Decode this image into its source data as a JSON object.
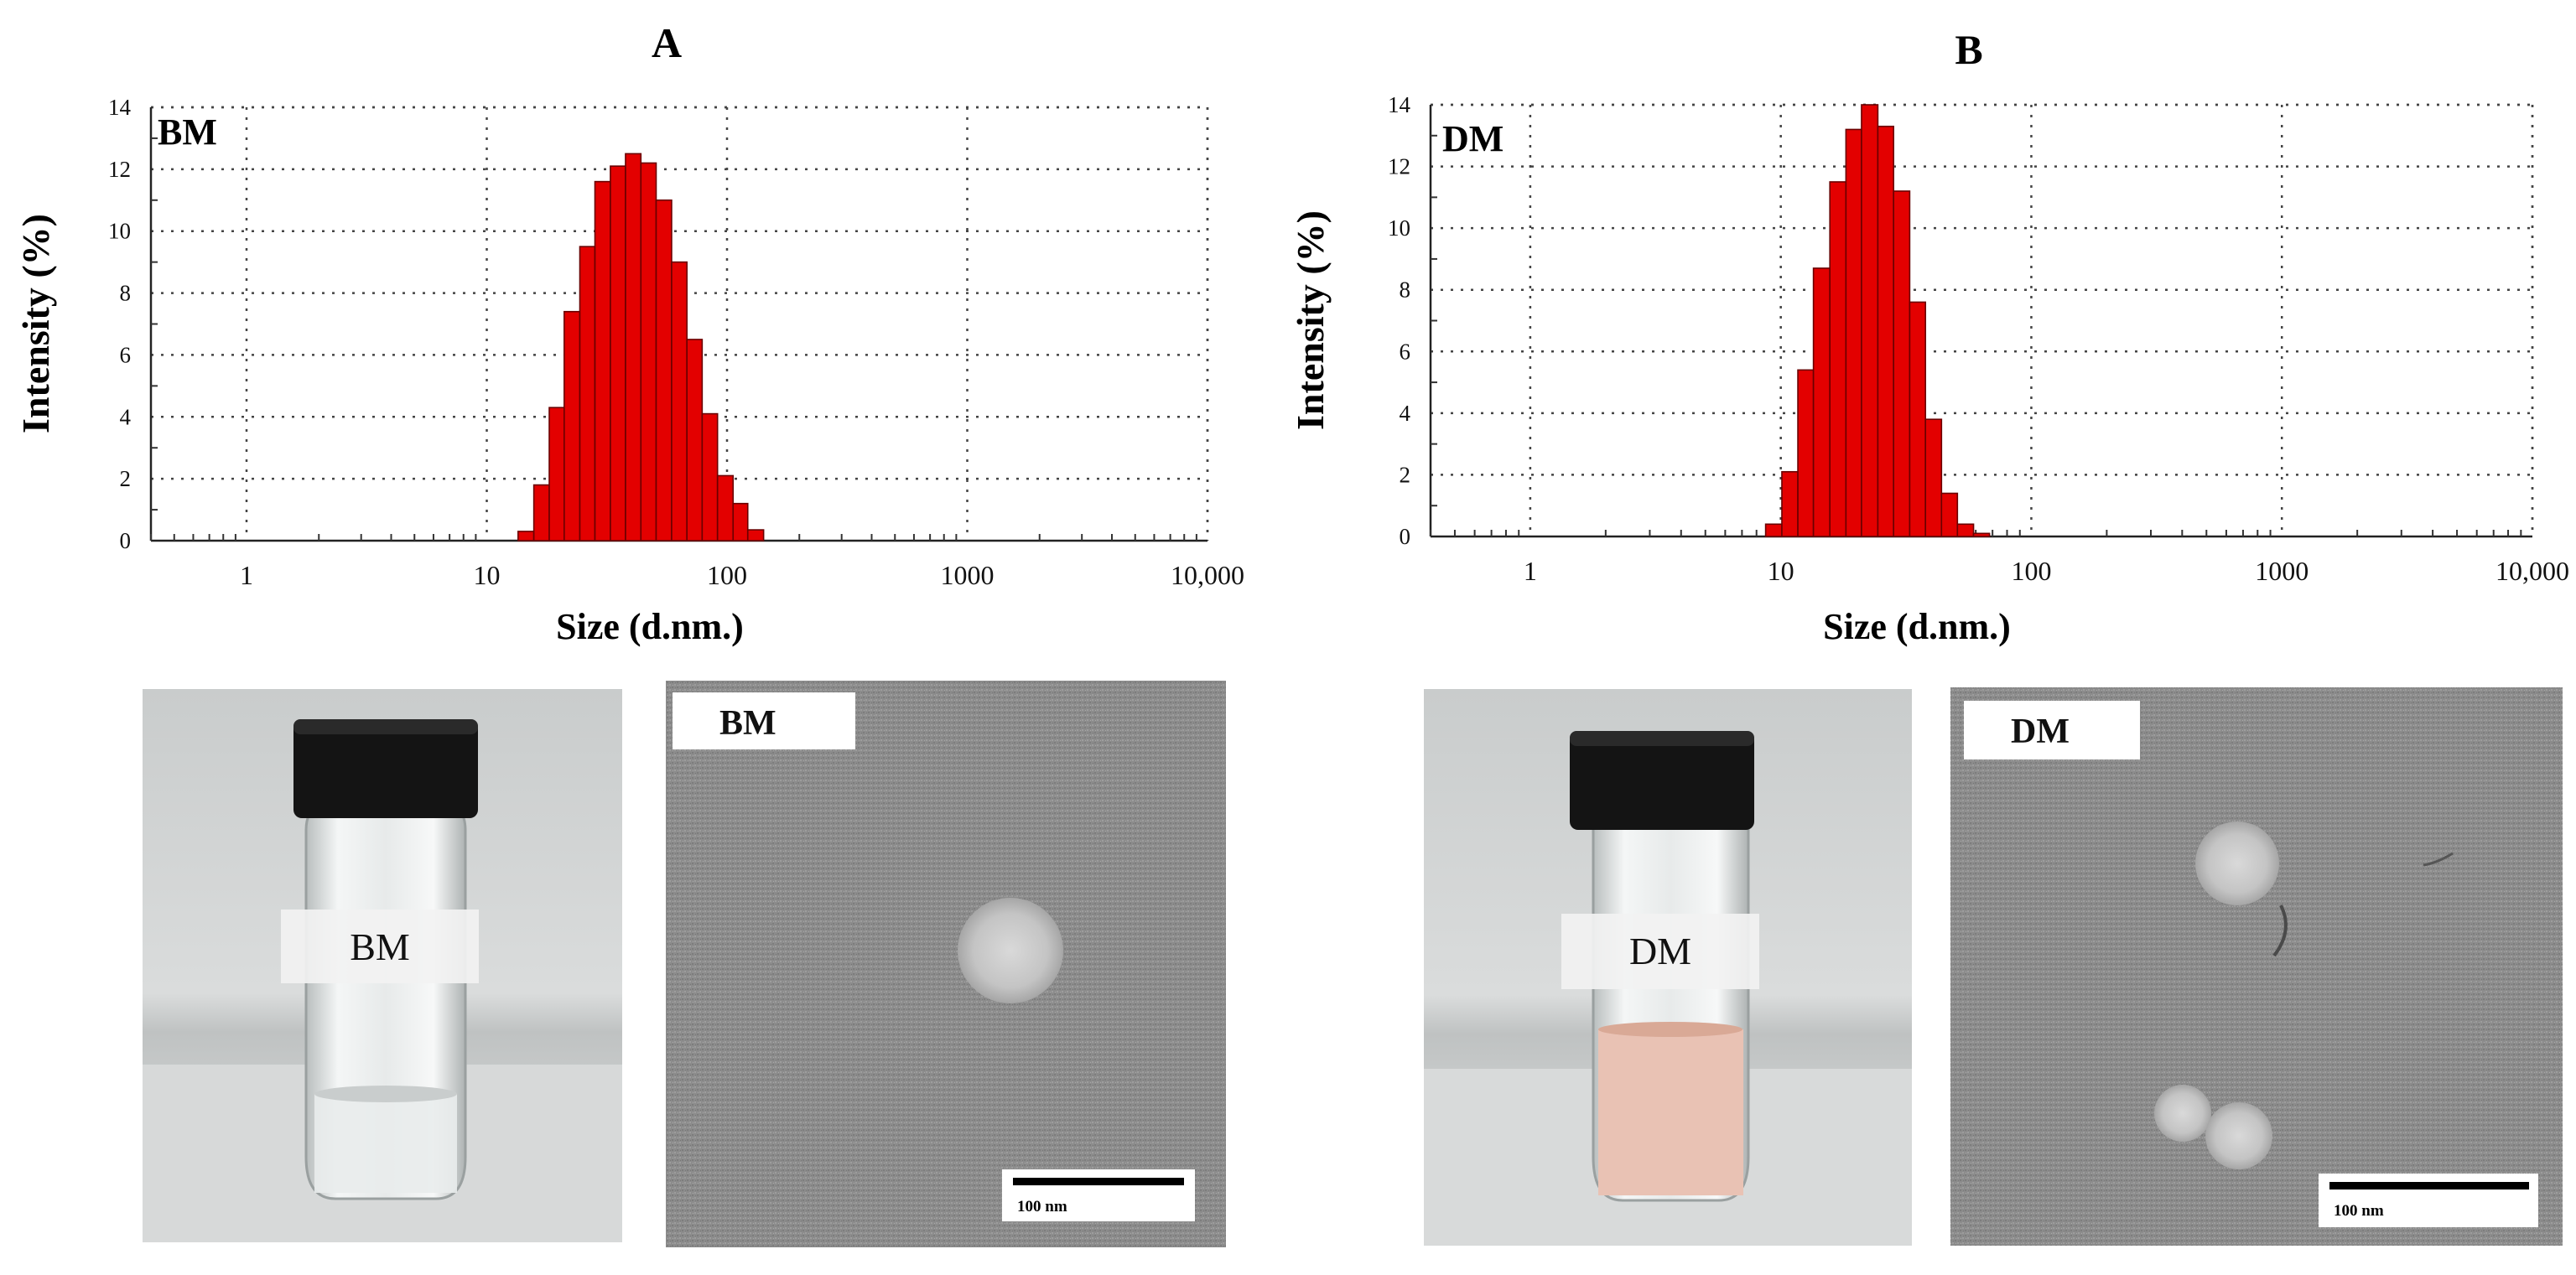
{
  "figure": {
    "panels": [
      {
        "letter": "A",
        "inset_label": "BM",
        "vial_label": "BM",
        "tem_label": "BM",
        "scale_bar": "100 nm"
      },
      {
        "letter": "B",
        "inset_label": "DM",
        "vial_label": "DM",
        "tem_label": "DM",
        "scale_bar": "100 nm"
      }
    ]
  },
  "colors": {
    "bar_fill": "#e30000",
    "bar_edge": "#6a0000",
    "grid": "#444444",
    "solution_dm": "#e9c2b4",
    "solution_bm": "#eef1f1"
  },
  "chart_data": [
    {
      "type": "bar",
      "title": "A",
      "annotation": "BM",
      "xlabel": "Size (d.nm.)",
      "ylabel": "Intensity (%)",
      "xscale": "log",
      "xlim": [
        0.4,
        10000
      ],
      "ylim": [
        0,
        14
      ],
      "grid": true,
      "xticks": [
        1,
        10,
        100,
        1000,
        10000
      ],
      "xtick_labels": [
        "1",
        "10",
        "100",
        "1000",
        "10,000"
      ],
      "yticks": [
        0,
        2,
        4,
        6,
        8,
        10,
        12,
        14
      ],
      "ytick_labels": [
        "0",
        "2",
        "4",
        "6",
        "8",
        "10",
        "12",
        "14"
      ],
      "bins": [
        {
          "from": 13.5,
          "to": 15.7,
          "value": 0.3
        },
        {
          "from": 15.7,
          "to": 18.2,
          "value": 1.8
        },
        {
          "from": 18.2,
          "to": 21.0,
          "value": 4.3
        },
        {
          "from": 21.0,
          "to": 24.4,
          "value": 7.4
        },
        {
          "from": 24.4,
          "to": 28.2,
          "value": 9.5
        },
        {
          "from": 28.2,
          "to": 32.7,
          "value": 11.6
        },
        {
          "from": 32.7,
          "to": 37.8,
          "value": 12.1
        },
        {
          "from": 37.8,
          "to": 43.8,
          "value": 12.5
        },
        {
          "from": 43.8,
          "to": 50.7,
          "value": 12.2
        },
        {
          "from": 50.7,
          "to": 58.8,
          "value": 11.0
        },
        {
          "from": 58.8,
          "to": 68.1,
          "value": 9.0
        },
        {
          "from": 68.1,
          "to": 78.8,
          "value": 6.5
        },
        {
          "from": 78.8,
          "to": 91.3,
          "value": 4.1
        },
        {
          "from": 91.3,
          "to": 106.0,
          "value": 2.1
        },
        {
          "from": 106.0,
          "to": 122.0,
          "value": 1.2
        },
        {
          "from": 122.0,
          "to": 142.0,
          "value": 0.35
        }
      ]
    },
    {
      "type": "bar",
      "title": "B",
      "annotation": "DM",
      "xlabel": "Size (d.nm.)",
      "ylabel": "Intensity (%)",
      "xscale": "log",
      "xlim": [
        0.4,
        10000
      ],
      "ylim": [
        0,
        14
      ],
      "grid": true,
      "xticks": [
        1,
        10,
        100,
        1000,
        10000
      ],
      "xtick_labels": [
        "1",
        "10",
        "100",
        "1000",
        "10,000"
      ],
      "yticks": [
        0,
        2,
        4,
        6,
        8,
        10,
        12,
        14
      ],
      "ytick_labels": [
        "0",
        "2",
        "4",
        "6",
        "8",
        "10",
        "12",
        "14"
      ],
      "bins": [
        {
          "from": 8.7,
          "to": 10.1,
          "value": 0.4
        },
        {
          "from": 10.1,
          "to": 11.7,
          "value": 2.1
        },
        {
          "from": 11.7,
          "to": 13.5,
          "value": 5.4
        },
        {
          "from": 13.5,
          "to": 15.7,
          "value": 8.7
        },
        {
          "from": 15.7,
          "to": 18.2,
          "value": 11.5
        },
        {
          "from": 18.2,
          "to": 21.0,
          "value": 13.2
        },
        {
          "from": 21.0,
          "to": 24.4,
          "value": 14.0
        },
        {
          "from": 24.4,
          "to": 28.2,
          "value": 13.3
        },
        {
          "from": 28.2,
          "to": 32.7,
          "value": 11.2
        },
        {
          "from": 32.7,
          "to": 37.8,
          "value": 7.6
        },
        {
          "from": 37.8,
          "to": 43.8,
          "value": 3.8
        },
        {
          "from": 43.8,
          "to": 50.7,
          "value": 1.4
        },
        {
          "from": 50.7,
          "to": 58.8,
          "value": 0.4
        },
        {
          "from": 58.8,
          "to": 68.1,
          "value": 0.1
        }
      ]
    }
  ]
}
